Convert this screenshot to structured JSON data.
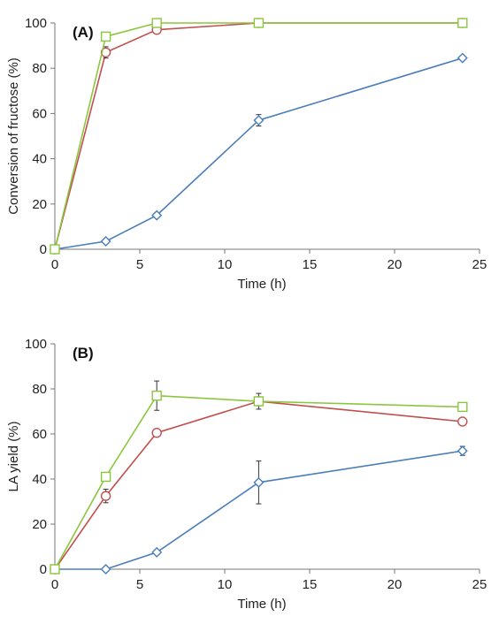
{
  "figure": {
    "colors": {
      "blue": "#4a7ebb",
      "red": "#c0504d",
      "green": "#8cc63f",
      "axis": "#777777",
      "error": "#333333"
    }
  },
  "chart_data": [
    {
      "type": "line",
      "panel_label": "(A)",
      "xlabel": "Time (h)",
      "ylabel": "Conversion of fructose (%)",
      "xlim": [
        0,
        25
      ],
      "ylim": [
        0,
        100
      ],
      "xticks": [
        0,
        5,
        10,
        15,
        20,
        25
      ],
      "yticks": [
        0,
        20,
        40,
        60,
        80,
        100
      ],
      "grid": false,
      "legend": "none",
      "x": [
        0,
        3,
        6,
        12,
        24
      ],
      "series": [
        {
          "color": "#4a7ebb",
          "marker": "diamond",
          "values": [
            0,
            3.5,
            15,
            57,
            84.5
          ],
          "errors": [
            0,
            0.5,
            1,
            2.5,
            1
          ]
        },
        {
          "color": "#c0504d",
          "marker": "circle",
          "values": [
            0,
            87,
            97,
            100,
            100
          ],
          "errors": [
            0,
            2.5,
            0.5,
            0.5,
            0.5
          ]
        },
        {
          "color": "#8cc63f",
          "marker": "square",
          "values": [
            0,
            94,
            100,
            100,
            100
          ],
          "errors": [
            0,
            0.5,
            0.3,
            0.3,
            0.3
          ]
        }
      ]
    },
    {
      "type": "line",
      "panel_label": "(B)",
      "xlabel": "Time (h)",
      "ylabel": "LA yield (%)",
      "xlim": [
        0,
        25
      ],
      "ylim": [
        0,
        100
      ],
      "xticks": [
        0,
        5,
        10,
        15,
        20,
        25
      ],
      "yticks": [
        0,
        20,
        40,
        60,
        80,
        100
      ],
      "grid": false,
      "legend": "none",
      "x": [
        0,
        3,
        6,
        12,
        24
      ],
      "series": [
        {
          "color": "#4a7ebb",
          "marker": "diamond",
          "values": [
            0,
            0,
            7.5,
            38.5,
            52.5
          ],
          "errors": [
            0,
            0,
            1,
            9.5,
            2
          ]
        },
        {
          "color": "#c0504d",
          "marker": "circle",
          "values": [
            0,
            32.5,
            60.5,
            74.5,
            65.5
          ],
          "errors": [
            0,
            3,
            0.5,
            2,
            0.5
          ]
        },
        {
          "color": "#8cc63f",
          "marker": "square",
          "values": [
            0,
            41,
            77,
            74.5,
            72
          ],
          "errors": [
            0,
            1.5,
            6.5,
            3.5,
            1.5
          ]
        }
      ]
    }
  ]
}
